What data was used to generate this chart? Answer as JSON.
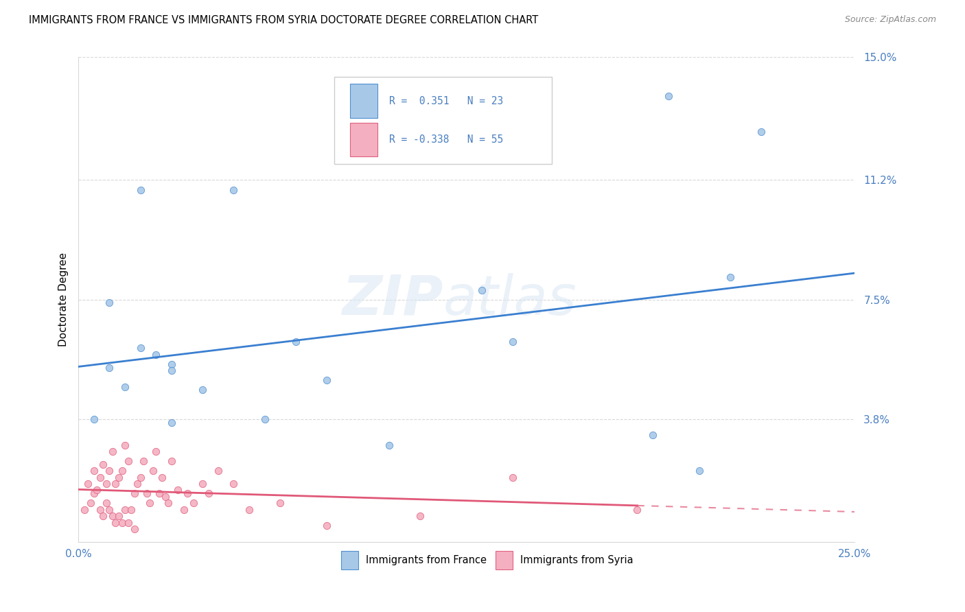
{
  "title": "IMMIGRANTS FROM FRANCE VS IMMIGRANTS FROM SYRIA DOCTORATE DEGREE CORRELATION CHART",
  "source": "Source: ZipAtlas.com",
  "ylabel": "Doctorate Degree",
  "yticks": [
    0.0,
    0.038,
    0.075,
    0.112,
    0.15
  ],
  "ytick_labels": [
    "",
    "3.8%",
    "7.5%",
    "11.2%",
    "15.0%"
  ],
  "xticks": [
    0.0,
    0.05,
    0.1,
    0.15,
    0.2,
    0.25
  ],
  "xlim": [
    0.0,
    0.25
  ],
  "ylim": [
    0.0,
    0.15
  ],
  "france_color": "#a8c8e8",
  "syria_color": "#f4b0c0",
  "france_edge_color": "#5090d0",
  "syria_edge_color": "#e06080",
  "france_line_color": "#3a7fd0",
  "syria_line_color": "#e05878",
  "france_R": "0.351",
  "france_N": "23",
  "syria_R": "-0.338",
  "syria_N": "55",
  "legend_text_color": "#4a7fc1",
  "france_scatter_x": [
    0.005,
    0.01,
    0.01,
    0.015,
    0.02,
    0.02,
    0.025,
    0.03,
    0.03,
    0.03,
    0.04,
    0.05,
    0.06,
    0.07,
    0.08,
    0.1,
    0.13,
    0.14,
    0.185,
    0.19,
    0.2,
    0.21,
    0.22
  ],
  "france_scatter_y": [
    0.038,
    0.074,
    0.054,
    0.048,
    0.109,
    0.06,
    0.058,
    0.055,
    0.053,
    0.037,
    0.047,
    0.109,
    0.038,
    0.062,
    0.05,
    0.03,
    0.078,
    0.062,
    0.033,
    0.138,
    0.022,
    0.082,
    0.127
  ],
  "syria_scatter_x": [
    0.002,
    0.003,
    0.004,
    0.005,
    0.005,
    0.006,
    0.007,
    0.007,
    0.008,
    0.008,
    0.009,
    0.009,
    0.01,
    0.01,
    0.011,
    0.011,
    0.012,
    0.012,
    0.013,
    0.013,
    0.014,
    0.014,
    0.015,
    0.015,
    0.016,
    0.016,
    0.017,
    0.018,
    0.018,
    0.019,
    0.02,
    0.021,
    0.022,
    0.023,
    0.024,
    0.025,
    0.026,
    0.027,
    0.028,
    0.029,
    0.03,
    0.032,
    0.034,
    0.035,
    0.037,
    0.04,
    0.042,
    0.045,
    0.05,
    0.055,
    0.065,
    0.08,
    0.11,
    0.14,
    0.18
  ],
  "syria_scatter_y": [
    0.01,
    0.018,
    0.012,
    0.022,
    0.015,
    0.016,
    0.02,
    0.01,
    0.024,
    0.008,
    0.018,
    0.012,
    0.022,
    0.01,
    0.028,
    0.008,
    0.018,
    0.006,
    0.02,
    0.008,
    0.022,
    0.006,
    0.03,
    0.01,
    0.025,
    0.006,
    0.01,
    0.015,
    0.004,
    0.018,
    0.02,
    0.025,
    0.015,
    0.012,
    0.022,
    0.028,
    0.015,
    0.02,
    0.014,
    0.012,
    0.025,
    0.016,
    0.01,
    0.015,
    0.012,
    0.018,
    0.015,
    0.022,
    0.018,
    0.01,
    0.012,
    0.005,
    0.008,
    0.02,
    0.01
  ],
  "background_color": "#ffffff",
  "watermark_text": "ZIP",
  "watermark_text2": "atlas",
  "grid_color": "#d8d8d8"
}
